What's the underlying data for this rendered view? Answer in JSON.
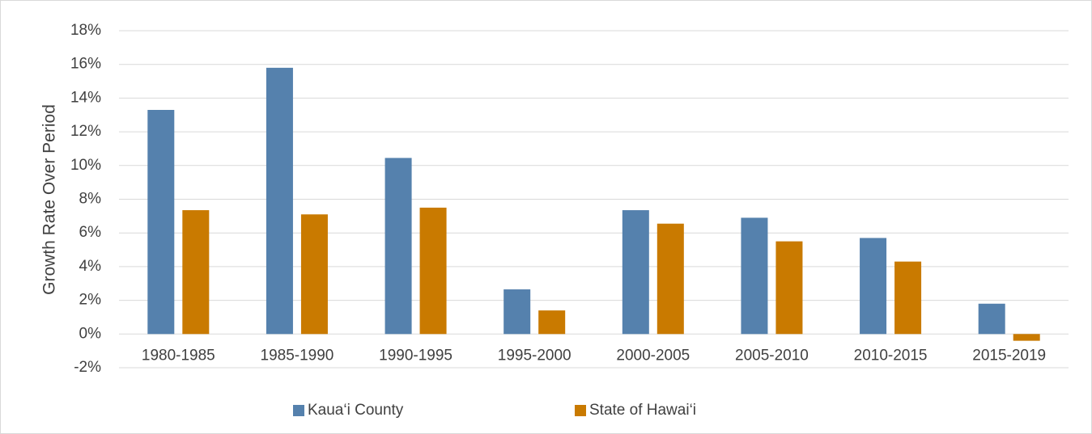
{
  "chart_data": {
    "type": "bar",
    "y_label": "Growth Rate Over Period",
    "categories": [
      "1980-1985",
      "1985-1990",
      "1990-1995",
      "1995-2000",
      "2000-2005",
      "2005-2010",
      "2010-2015",
      "2015-2019"
    ],
    "series": [
      {
        "name": "Kaua‘i County",
        "color": "#5581ad",
        "values": [
          13.3,
          15.8,
          10.45,
          2.65,
          7.35,
          6.9,
          5.7,
          1.8
        ]
      },
      {
        "name": "State of Hawai‘i",
        "color": "#c97a00",
        "values": [
          7.35,
          7.1,
          7.5,
          1.4,
          6.55,
          5.5,
          4.3,
          -0.4
        ]
      }
    ],
    "ylim": [
      -2,
      18
    ],
    "yticks": [
      {
        "value": -2,
        "label": "-2%"
      },
      {
        "value": 0,
        "label": "0%"
      },
      {
        "value": 2,
        "label": "2%"
      },
      {
        "value": 4,
        "label": "4%"
      },
      {
        "value": 6,
        "label": "6%"
      },
      {
        "value": 8,
        "label": "8%"
      },
      {
        "value": 10,
        "label": "10%"
      },
      {
        "value": 12,
        "label": "12%"
      },
      {
        "value": 14,
        "label": "14%"
      },
      {
        "value": 16,
        "label": "16%"
      },
      {
        "value": 18,
        "label": "18%"
      }
    ],
    "grid": true,
    "legend": "bottom"
  }
}
